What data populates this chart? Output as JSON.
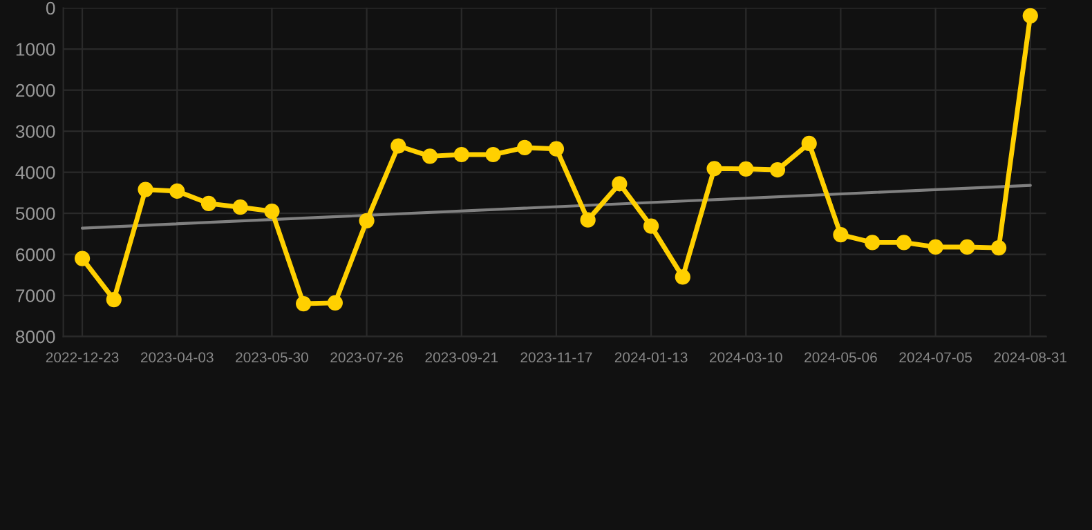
{
  "chart_data": {
    "type": "line",
    "categories": [
      "2022-12-23",
      null,
      null,
      "2023-04-03",
      null,
      null,
      "2023-05-30",
      null,
      null,
      "2023-07-26",
      null,
      null,
      "2023-09-21",
      null,
      null,
      "2023-11-17",
      null,
      null,
      "2024-01-13",
      null,
      null,
      "2024-03-10",
      null,
      null,
      "2024-05-06",
      null,
      null,
      "2024-07-05",
      null,
      null,
      "2024-08-31"
    ],
    "series": [
      {
        "color": "#ffd000",
        "marker": "circle",
        "values": [
          6100,
          7100,
          4420,
          4460,
          4760,
          4850,
          4950,
          7200,
          7180,
          5180,
          3360,
          3610,
          3570,
          3570,
          3400,
          3430,
          5160,
          4280,
          5310,
          6550,
          3910,
          3920,
          3940,
          3300,
          5520,
          5710,
          5710,
          5820,
          5820,
          5840,
          190
        ]
      },
      {
        "color": "#808080",
        "marker": "none",
        "values": [
          5360,
          null,
          null,
          null,
          null,
          null,
          null,
          null,
          null,
          null,
          null,
          null,
          null,
          null,
          null,
          null,
          null,
          null,
          null,
          null,
          null,
          null,
          null,
          null,
          null,
          null,
          null,
          null,
          null,
          null,
          4320
        ]
      }
    ],
    "ylim": [
      8000,
      0
    ],
    "yticks": [
      0,
      1000,
      2000,
      3000,
      4000,
      5000,
      6000,
      7000,
      8000
    ],
    "grid": true,
    "legend": false
  }
}
